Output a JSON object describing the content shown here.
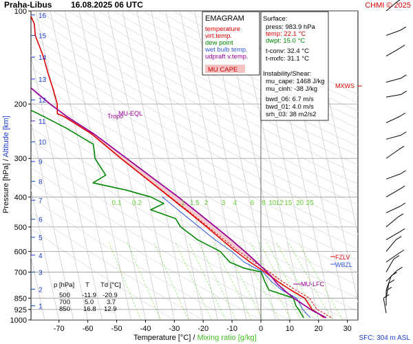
{
  "header": {
    "station": "Praha-Libus",
    "datetime": "16.08.2025 06 UTC",
    "credit": "CHMI © 2025"
  },
  "legend": {
    "title": "EMAGRAM",
    "items": [
      {
        "label": "temperature",
        "color": "#dd0000"
      },
      {
        "label": "virt.temp.",
        "color": "#dd0000"
      },
      {
        "label": "dew point",
        "color": "#008800"
      },
      {
        "label": "wet bulb temp.",
        "color": "#3355dd"
      },
      {
        "label": "udpraft v.temp.",
        "color": "#990099"
      }
    ],
    "cape_label": "MU CAPE"
  },
  "surface_box": {
    "title": "Surface:",
    "press": "press: 983.9 hPa",
    "temp": "temp: 22.1 °C",
    "dwpt": "dwpt: 15.0 °C",
    "tconv": "t-conv: 32.4 °C",
    "tmxfc": "t-mxfc: 31.1 °C",
    "instab_title": "Instability/Shear:",
    "mu_cape": "mu_cape: 1468 J/kg",
    "mu_cinh": "mu_cinh: -38 J/kg",
    "bwd_06": "bwd_06: 6.7 m/s",
    "bwd_01": "bwd_01: 4.0 m/s",
    "srh_03": "srh_03: 38 m2/s2"
  },
  "level_table": {
    "headers": [
      "p [hPa]",
      "T",
      "Td [°C]"
    ],
    "rows": [
      [
        "500",
        "-11.9",
        "-20.9"
      ],
      [
        "700",
        "5.0",
        "3.7"
      ],
      [
        "850",
        "16.8",
        "12.9"
      ]
    ]
  },
  "axis_text": {
    "xlabel_temp": "Temperature [°C]",
    "xlabel_sep": " / ",
    "xlabel_mix": "Mixing ratio [g/kg]",
    "ylabel_press": "Pressure [hPa]",
    "ylabel_sep": " / ",
    "ylabel_alt": "Altitude [km]",
    "sfc": "SFC: 304 m ASL"
  },
  "annotations": {
    "tropo": "Tropo",
    "mu_eql": "MU-EQL",
    "mu_lfc": "MU-LFC",
    "mxws": "MXWS",
    "fzlv": "FZLV",
    "wbzl": "WBZL"
  },
  "colors": {
    "temperature": "#dd0000",
    "dewpoint": "#008800",
    "wetbulb": "#3355dd",
    "parcel": "#990099",
    "cape_fill": "#f2c8c8",
    "altitude": "#1a3ccc",
    "mixing": "#77dd44",
    "grid": "#999999"
  },
  "chart_data": {
    "type": "line",
    "xlim": [
      -80,
      30
    ],
    "ylim": [
      1000,
      100
    ],
    "y_scale": "log",
    "x_ticks": [
      -70,
      -60,
      -50,
      -40,
      -30,
      -20,
      -10,
      0,
      10,
      20,
      30
    ],
    "pressure_ticks": [
      100,
      200,
      300,
      400,
      500,
      600,
      700,
      850,
      925,
      1000
    ],
    "altitude_ticks_km": [
      {
        "km": 1,
        "p": 900
      },
      {
        "km": 2,
        "p": 795
      },
      {
        "km": 3,
        "p": 700
      },
      {
        "km": 4,
        "p": 617
      },
      {
        "km": 5,
        "p": 540
      },
      {
        "km": 6,
        "p": 472
      },
      {
        "km": 7,
        "p": 410
      },
      {
        "km": 8,
        "p": 356
      },
      {
        "km": 9,
        "p": 307
      },
      {
        "km": 10,
        "p": 265
      },
      {
        "km": 11,
        "p": 227
      },
      {
        "km": 12,
        "p": 194
      },
      {
        "km": 13,
        "p": 166
      },
      {
        "km": 14,
        "p": 141
      },
      {
        "km": 15,
        "p": 120
      },
      {
        "km": 16,
        "p": 103
      }
    ],
    "mixing_ratio_labels": [
      {
        "label": "0.1",
        "t": -50
      },
      {
        "label": "0.2",
        "t": -43
      },
      {
        "label": "1",
        "t": -27
      },
      {
        "label": "1.5",
        "t": -23
      },
      {
        "label": "2",
        "t": -19
      },
      {
        "label": "3",
        "t": -13
      },
      {
        "label": "4",
        "t": -9
      },
      {
        "label": "6",
        "t": -3
      },
      {
        "label": "8",
        "t": 1
      },
      {
        "label": "10",
        "t": 4
      },
      {
        "label": "12",
        "t": 6.5
      },
      {
        "label": "15",
        "t": 9.5
      },
      {
        "label": "20",
        "t": 13.5
      },
      {
        "label": "25",
        "t": 17
      }
    ],
    "series": [
      {
        "name": "temperature",
        "points": [
          [
            983.9,
            22.1
          ],
          [
            950,
            20.2
          ],
          [
            925,
            18.5
          ],
          [
            900,
            18.0
          ],
          [
            850,
            16.8
          ],
          [
            800,
            12.6
          ],
          [
            750,
            8.6
          ],
          [
            700,
            5.0
          ],
          [
            650,
            0.6
          ],
          [
            600,
            -3.6
          ],
          [
            550,
            -7.6
          ],
          [
            500,
            -11.9
          ],
          [
            450,
            -16.8
          ],
          [
            400,
            -22.5
          ],
          [
            350,
            -29.0
          ],
          [
            300,
            -36.5
          ],
          [
            250,
            -44.8
          ],
          [
            220,
            -53.0
          ],
          [
            215,
            -55.2
          ],
          [
            200,
            -54.5
          ],
          [
            180,
            -54.8
          ],
          [
            160,
            -55.4
          ],
          [
            140,
            -55.8
          ],
          [
            120,
            -57.0
          ],
          [
            110,
            -56.5
          ],
          [
            100,
            -57.5
          ]
        ]
      },
      {
        "name": "virt.temp.",
        "points": [
          [
            983.9,
            24.5
          ],
          [
            950,
            22.3
          ],
          [
            925,
            20.2
          ],
          [
            900,
            19.6
          ],
          [
            850,
            18.5
          ],
          [
            800,
            14.3
          ],
          [
            750,
            10.2
          ],
          [
            700,
            6.6
          ],
          [
            650,
            2.0
          ],
          [
            600,
            -2.6
          ],
          [
            550,
            -6.8
          ],
          [
            500,
            -11.4
          ],
          [
            450,
            -16.4
          ],
          [
            400,
            -22.2
          ],
          [
            350,
            -28.8
          ],
          [
            300,
            -36.4
          ],
          [
            250,
            -44.7
          ],
          [
            220,
            -52.9
          ],
          [
            215,
            -55.1
          ]
        ]
      },
      {
        "name": "dew point",
        "points": [
          [
            983.9,
            15.0
          ],
          [
            950,
            14.3
          ],
          [
            925,
            13.9
          ],
          [
            900,
            13.2
          ],
          [
            850,
            12.9
          ],
          [
            800,
            5.0
          ],
          [
            750,
            4.2
          ],
          [
            700,
            3.7
          ],
          [
            680,
            -2.0
          ],
          [
            650,
            -6.5
          ],
          [
            600,
            -9.0
          ],
          [
            550,
            -16.0
          ],
          [
            500,
            -20.9
          ],
          [
            470,
            -22.0
          ],
          [
            440,
            -30.0
          ],
          [
            420,
            -25.0
          ],
          [
            400,
            -29.0
          ],
          [
            380,
            -37.0
          ],
          [
            360,
            -48.0
          ],
          [
            340,
            -43.0
          ],
          [
            300,
            -45.5
          ],
          [
            270,
            -45.0
          ],
          [
            240,
            -53.0
          ],
          [
            220,
            -60.0
          ],
          [
            200,
            -68.0
          ],
          [
            180,
            -70.0
          ],
          [
            160,
            -78.0
          ],
          [
            140,
            -77.0
          ],
          [
            120,
            -74.0
          ],
          [
            100,
            -72.0
          ]
        ]
      },
      {
        "name": "wet bulb temp.",
        "points": [
          [
            983.9,
            17.3
          ],
          [
            925,
            15.3
          ],
          [
            850,
            14.0
          ],
          [
            800,
            9.5
          ],
          [
            750,
            6.5
          ],
          [
            700,
            4.3
          ],
          [
            650,
            -1.5
          ],
          [
            600,
            -5.0
          ],
          [
            550,
            -10.0
          ],
          [
            500,
            -14.5
          ],
          [
            450,
            -19.5
          ],
          [
            400,
            -25.0
          ]
        ]
      },
      {
        "name": "udpraft v.temp.",
        "points": [
          [
            983.9,
            22.8
          ],
          [
            925,
            18.0
          ],
          [
            850,
            13.0
          ],
          [
            800,
            10.2
          ],
          [
            760,
            8.2
          ],
          [
            720,
            6.7
          ],
          [
            700,
            5.7
          ],
          [
            650,
            2.8
          ],
          [
            600,
            -0.5
          ],
          [
            550,
            -4.3
          ],
          [
            500,
            -8.8
          ],
          [
            450,
            -13.8
          ],
          [
            400,
            -19.5
          ],
          [
            350,
            -26.5
          ],
          [
            300,
            -34.5
          ],
          [
            250,
            -44.0
          ],
          [
            220,
            -52.0
          ],
          [
            200,
            -57.0
          ],
          [
            150,
            -70.0
          ],
          [
            130,
            -78.0
          ]
        ]
      }
    ]
  }
}
